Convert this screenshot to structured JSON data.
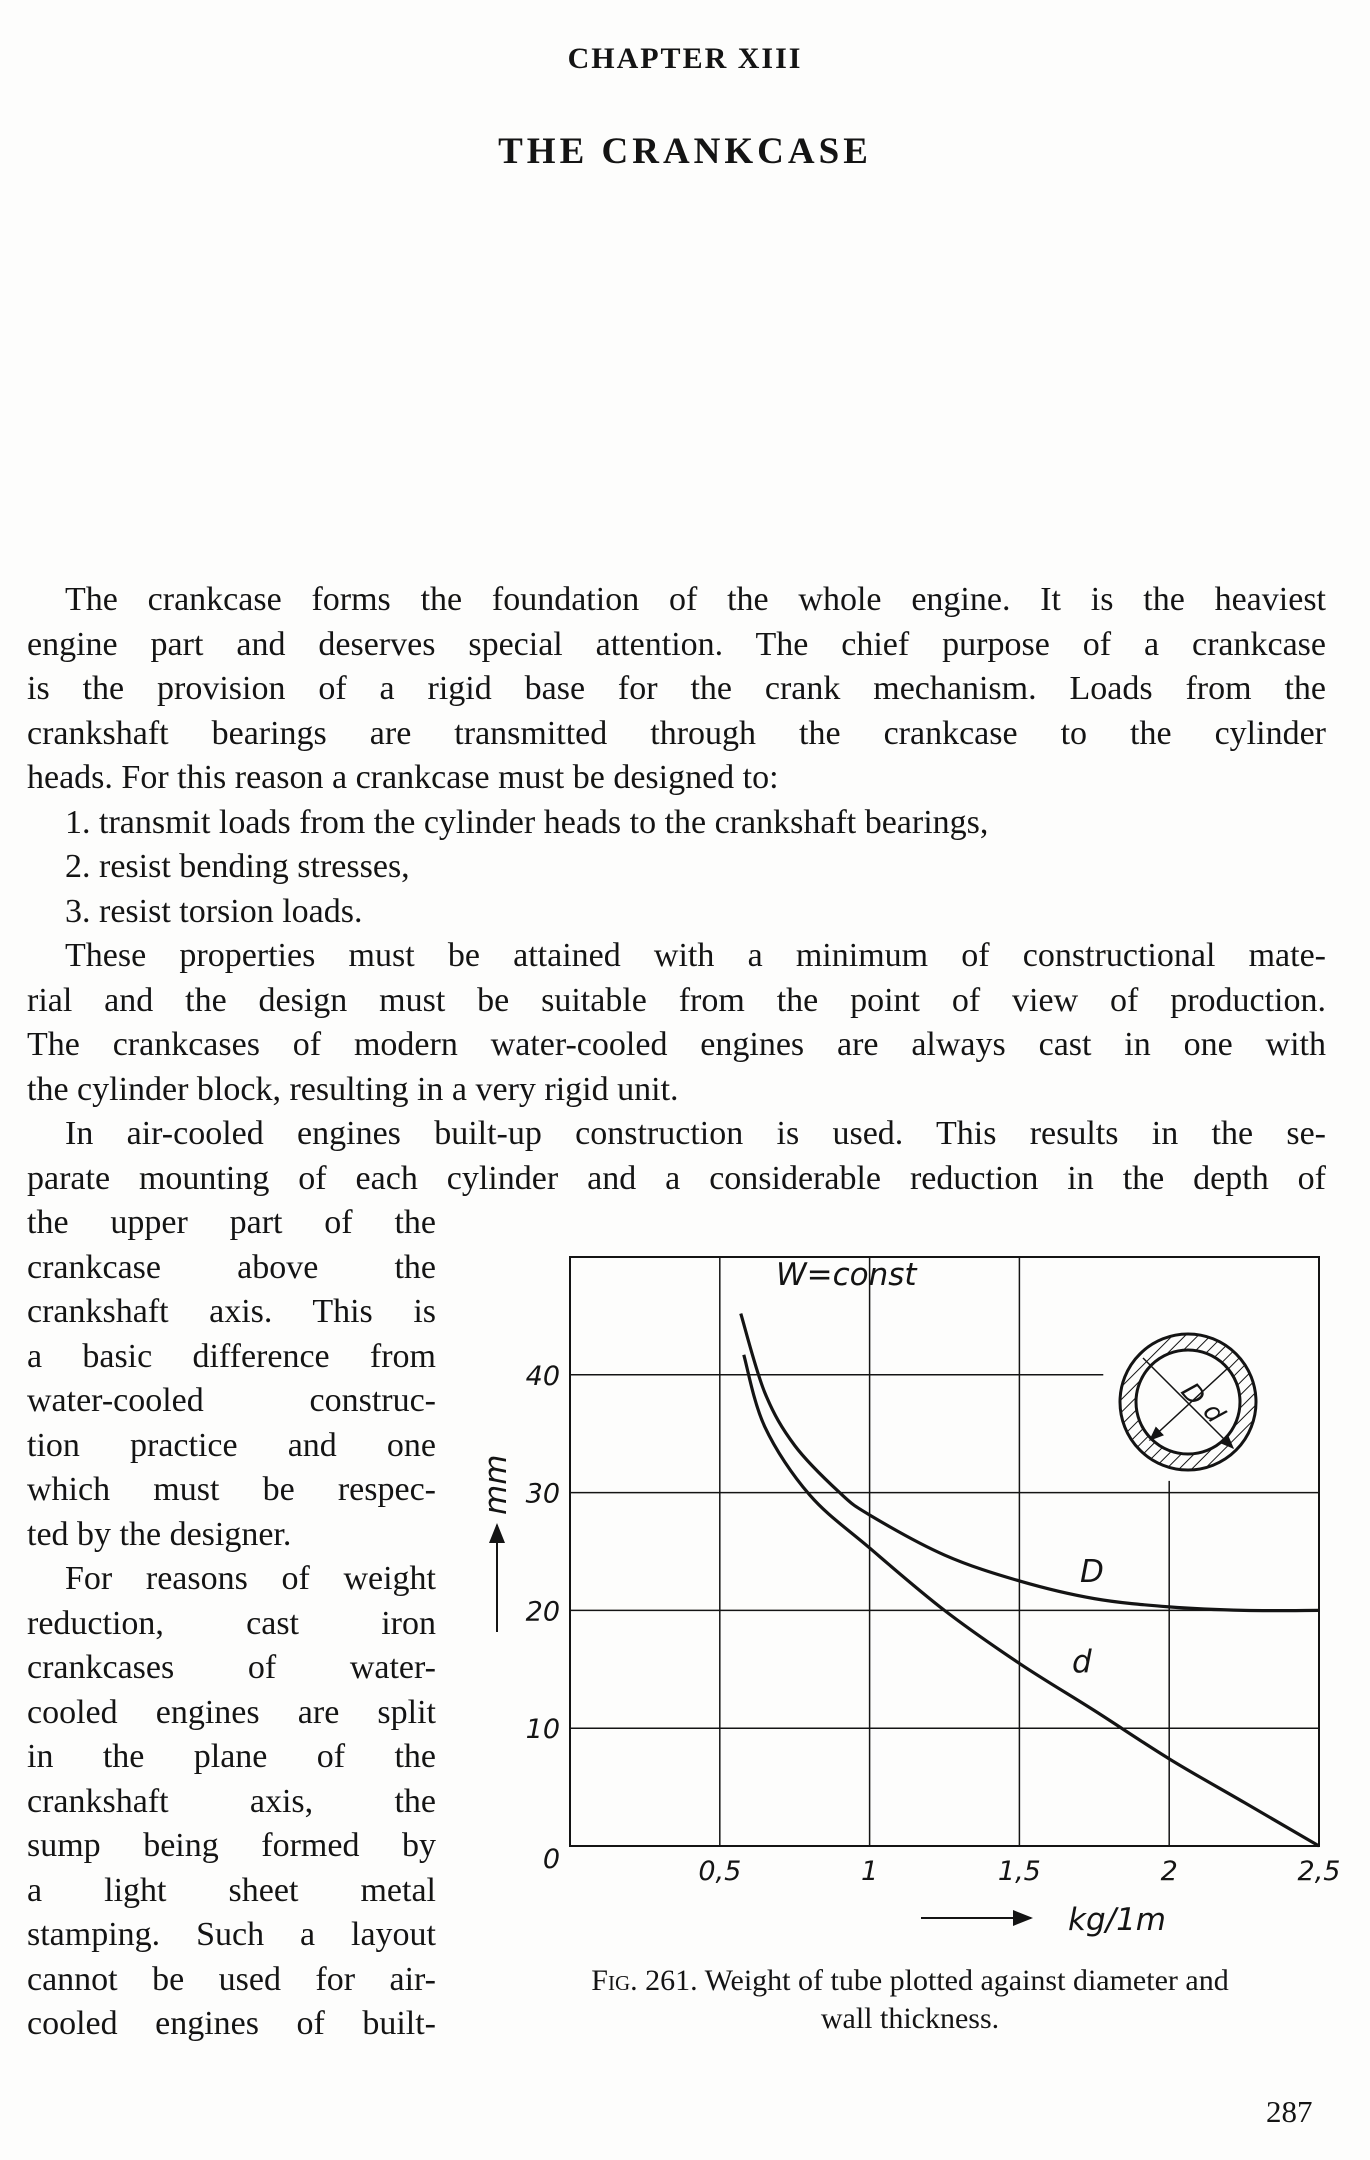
{
  "chapter": "CHAPTER XIII",
  "title": "THE CRANKCASE",
  "paragraphs": [
    {
      "lines": [
        "The crankcase forms the foundation of the whole engine. It is the heaviest",
        "engine part and deserves special attention. The chief purpose of a crankcase",
        "is the provision of a rigid base for the crank mechanism. Loads from the",
        "crankshaft bearings are transmitted through the crankcase to the cylinder",
        "heads. For this reason a crankcase must be designed to:"
      ]
    },
    {
      "lines": [
        "1. transmit loads from the cylinder heads to the crankshaft bearings,"
      ]
    },
    {
      "lines": [
        "2. resist bending stresses,"
      ]
    },
    {
      "lines": [
        "3. resist torsion loads."
      ]
    },
    {
      "lines": [
        "These properties must be attained with a minimum of constructional mate-",
        "rial and the design must be suitable from the point of view of production.",
        "The crankcases of modern water-cooled engines are always cast in one with",
        "the cylinder block, resulting in a very rigid unit."
      ]
    },
    {
      "lines": [
        "In air-cooled engines built-up construction is used. This results in the se-",
        "parate mounting of each cylinder and a considerable reduction in the depth of",
        "the upper part of the",
        "crankcase above the",
        "crankshaft axis. This is",
        "a basic difference from",
        "water-cooled construc-",
        "tion practice and one",
        "which must be respec-",
        "ted by the designer."
      ]
    },
    {
      "lines": [
        "For reasons of weight",
        "reduction, cast iron",
        "crankcases of water-",
        "cooled engines are split",
        "in the plane of the",
        "crankshaft axis, the",
        "sump being formed by",
        "a light sheet metal",
        "stamping. Such a layout",
        "cannot be used for air-",
        "cooled engines of built-"
      ]
    }
  ],
  "figure": {
    "caption_prefix": "Fig. 261.",
    "caption_line1": "Weight of tube plotted against diameter and",
    "caption_line2": "wall thickness."
  },
  "chart_data": {
    "type": "line",
    "title": "",
    "annotation": "W=const",
    "xlabel": "kg/1m",
    "ylabel": "mm",
    "xlim": [
      0,
      2.5
    ],
    "ylim": [
      0,
      50
    ],
    "x_ticks": [
      {
        "v": 0.5,
        "t": "0,5"
      },
      {
        "v": 1,
        "t": "1"
      },
      {
        "v": 1.5,
        "t": "1,5"
      },
      {
        "v": 2,
        "t": "2"
      },
      {
        "v": 2.5,
        "t": "2,5"
      }
    ],
    "y_ticks": [
      {
        "v": 0,
        "t": "0"
      },
      {
        "v": 10,
        "t": "10"
      },
      {
        "v": 20,
        "t": "20"
      },
      {
        "v": 30,
        "t": "30"
      },
      {
        "v": 40,
        "t": "40"
      }
    ],
    "grid": true,
    "series": [
      {
        "name": "D",
        "points": [
          [
            0.57,
            45.2
          ],
          [
            0.65,
            38.5
          ],
          [
            0.75,
            34
          ],
          [
            0.9,
            30
          ],
          [
            1,
            28.1
          ],
          [
            1.25,
            24.7
          ],
          [
            1.5,
            22.5
          ],
          [
            1.75,
            21
          ],
          [
            2,
            20.3
          ],
          [
            2.25,
            20
          ],
          [
            2.5,
            20
          ]
        ]
      },
      {
        "name": "d",
        "points": [
          [
            0.58,
            41.7
          ],
          [
            0.65,
            35.6
          ],
          [
            0.8,
            29.8
          ],
          [
            1,
            25.3
          ],
          [
            1.25,
            20
          ],
          [
            1.5,
            15.5
          ],
          [
            1.75,
            11.5
          ],
          [
            2,
            7.4
          ],
          [
            2.25,
            3.7
          ],
          [
            2.5,
            0
          ]
        ]
      }
    ],
    "inset_labels": [
      "D",
      "d"
    ],
    "color": "#141414"
  },
  "page_number": "287"
}
